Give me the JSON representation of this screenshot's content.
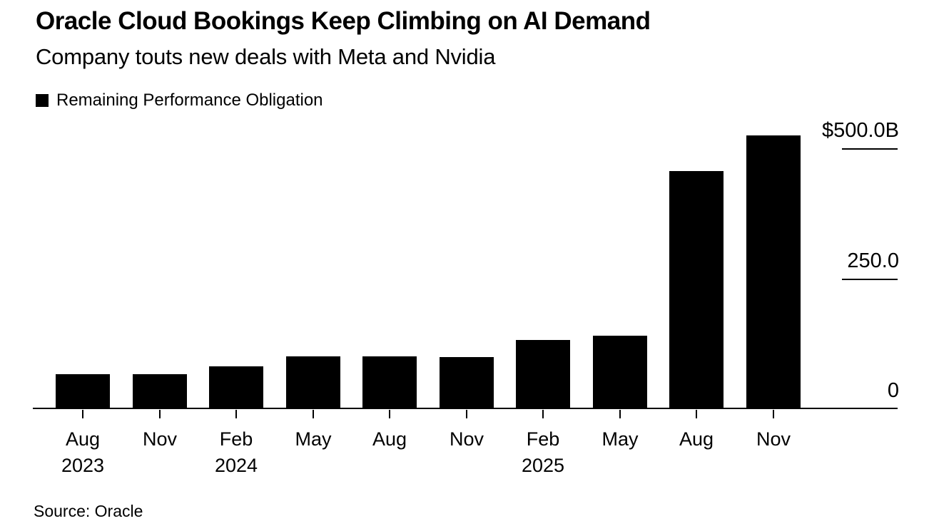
{
  "chart_data": {
    "type": "bar",
    "title": "Oracle Cloud Bookings Keep Climbing on AI Demand",
    "subtitle": "Company touts new deals with Meta and Nvidia",
    "legend_label": "Remaining Performance Obligation",
    "legend_position": "top-left",
    "source": "Source: Oracle",
    "bar_color": "#000000",
    "background_color": "#ffffff",
    "value_unit": "billions of USD (implied by $500.0B tick label)",
    "categories": [
      "Aug 2023",
      "Nov",
      "Feb 2024",
      "May",
      "Aug",
      "Nov",
      "Feb 2025",
      "May",
      "Aug",
      "Nov"
    ],
    "x_tick_labels": [
      {
        "month": "Aug",
        "year": "2023"
      },
      {
        "month": "Nov",
        "year": ""
      },
      {
        "month": "Feb",
        "year": "2024"
      },
      {
        "month": "May",
        "year": ""
      },
      {
        "month": "Aug",
        "year": ""
      },
      {
        "month": "Nov",
        "year": ""
      },
      {
        "month": "Feb",
        "year": "2025"
      },
      {
        "month": "May",
        "year": ""
      },
      {
        "month": "Aug",
        "year": ""
      },
      {
        "month": "Nov",
        "year": ""
      }
    ],
    "series": [
      {
        "name": "Remaining Performance Obligation",
        "values": [
          65,
          65,
          80,
          98,
          99,
          97,
          130,
          138,
          455,
          523
        ]
      }
    ],
    "ylim": [
      0,
      525
    ],
    "y_ticks": [
      {
        "label": "$500.0B",
        "value": 500,
        "tick_line": true
      },
      {
        "label": "250.0",
        "value": 250,
        "tick_line": true
      },
      {
        "label": "0",
        "value": 0,
        "tick_line": false
      }
    ],
    "grid": "short tick-line segments on right side only, x ticks below baseline"
  }
}
